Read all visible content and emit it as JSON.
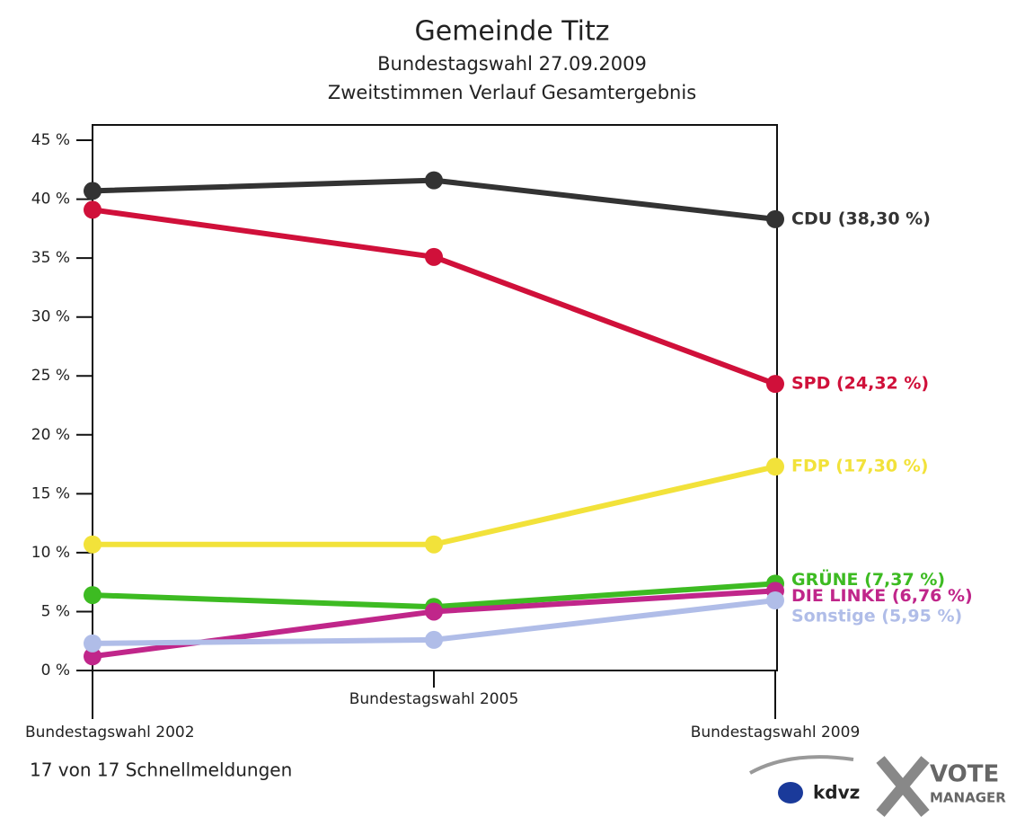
{
  "chart_data": {
    "type": "line",
    "title": "Gemeinde Titz",
    "subtitle": "Bundestagswahl 27.09.2009",
    "subtitle2": "Zweitstimmen Verlauf Gesamtergebnis",
    "categories": [
      "Bundestagswahl 2002",
      "Bundestagswahl 2005",
      "Bundestagswahl 2009"
    ],
    "series": [
      {
        "name": "CDU",
        "color": "#333333",
        "values": [
          40.7,
          41.6,
          38.3
        ],
        "value_labels": [
          null,
          null,
          "CDU (38,30 %)"
        ]
      },
      {
        "name": "SPD",
        "color": "#d0103a",
        "values": [
          39.1,
          35.1,
          24.32
        ],
        "value_labels": [
          null,
          null,
          "SPD (24,32 %)"
        ]
      },
      {
        "name": "FDP",
        "color": "#f2e23a",
        "values": [
          10.7,
          10.7,
          17.3
        ],
        "value_labels": [
          null,
          null,
          "FDP (17,30 %)"
        ]
      },
      {
        "name": "GRÜNE",
        "color": "#3dbb22",
        "values": [
          6.4,
          5.4,
          7.37
        ],
        "value_labels": [
          null,
          null,
          "GRÜNE (7,37 %)"
        ]
      },
      {
        "name": "DIE LINKE",
        "color": "#c0268a",
        "values": [
          1.2,
          5.0,
          6.76
        ],
        "value_labels": [
          null,
          null,
          "DIE LINKE (6,76 %)"
        ]
      },
      {
        "name": "Sonstige",
        "color": "#b0bde8",
        "values": [
          2.3,
          2.6,
          5.95
        ],
        "value_labels": [
          null,
          null,
          "Sonstige (5,95 %)"
        ]
      }
    ],
    "ylim": [
      0,
      46.3
    ],
    "yticks": [
      {
        "value": 0,
        "label": "0 %"
      },
      {
        "value": 5,
        "label": "5 %"
      },
      {
        "value": 10,
        "label": "10 %"
      },
      {
        "value": 15,
        "label": "15 %"
      },
      {
        "value": 20,
        "label": "20 %"
      },
      {
        "value": 25,
        "label": "25 %"
      },
      {
        "value": 30,
        "label": "30 %"
      },
      {
        "value": 35,
        "label": "35 %"
      },
      {
        "value": 40,
        "label": "40 %"
      },
      {
        "value": 45,
        "label": "45 %"
      }
    ],
    "footer": "17 von 17 Schnellmeldungen",
    "logos": [
      "kdvz",
      "VOTE",
      "MANAGER"
    ]
  }
}
